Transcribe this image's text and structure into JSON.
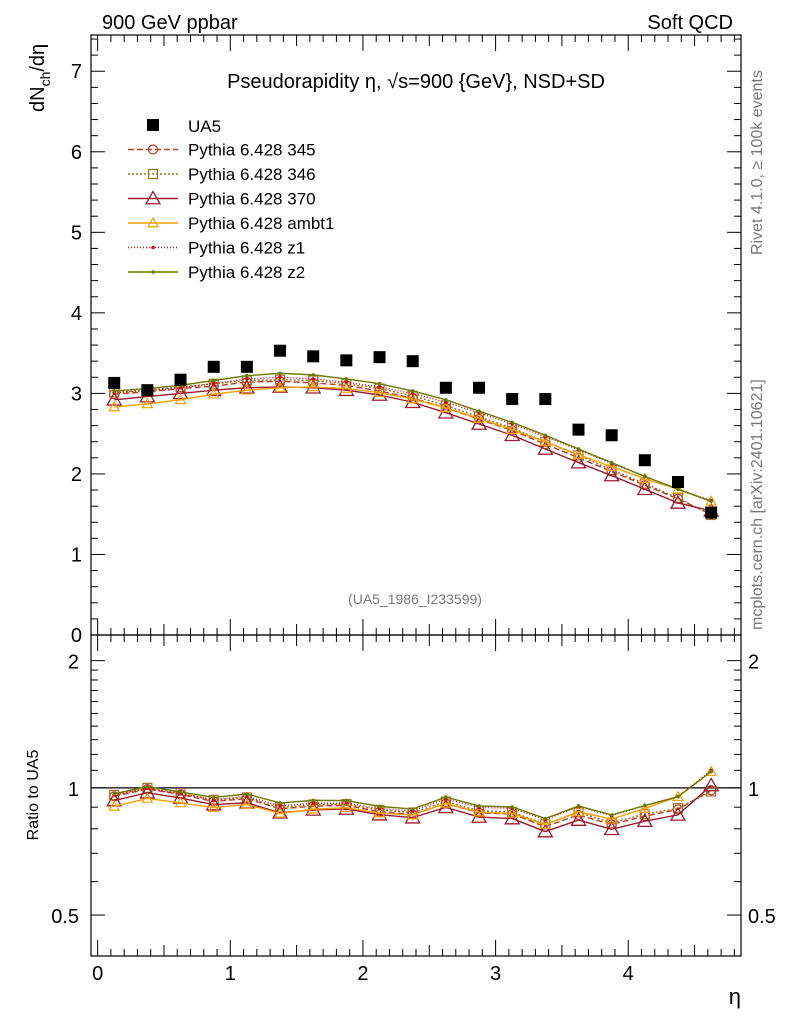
{
  "header": {
    "left": "900 GeV ppbar",
    "right": "Soft QCD"
  },
  "side_labels": {
    "rivet": "Rivet 4.1.0, ≥ 100k events",
    "mcplots": "mcplots.cern.ch [arXiv:2401.10621]"
  },
  "chart_data": {
    "type": "line",
    "title": "Pseudorapidity η, √s=900 {GeV}, NSD+SD",
    "analysis_tag": "(UA5_1986_I233599)",
    "xlabel": "η",
    "ylabel": "dN_ch/dη",
    "ylabel_parts": {
      "main": "dN",
      "sub": "ch",
      "tail": "/dη"
    },
    "ratio_ylabel": "Ratio to UA5",
    "xlim": [
      -0.05,
      4.85
    ],
    "ylim": [
      0,
      7.45
    ],
    "ratio_ylim": [
      0.4,
      2.3
    ],
    "ratio_scale": "log",
    "x_ticks": [
      0,
      1,
      2,
      3,
      4
    ],
    "x_tick_labels": [
      "0",
      "1",
      "2",
      "3",
      "4"
    ],
    "y_ticks": [
      0,
      1,
      2,
      3,
      4,
      5,
      6,
      7
    ],
    "y_tick_labels": [
      "0",
      "1",
      "2",
      "3",
      "4",
      "5",
      "6",
      "7"
    ],
    "ratio_ticks": [
      0.5,
      1,
      2
    ],
    "ratio_tick_labels": [
      "0.5",
      "1",
      "2"
    ],
    "x": [
      0.125,
      0.375,
      0.625,
      0.875,
      1.125,
      1.375,
      1.625,
      1.875,
      2.125,
      2.375,
      2.625,
      2.875,
      3.125,
      3.375,
      3.625,
      3.875,
      4.125,
      4.375,
      4.625
    ],
    "data": {
      "name": "UA5",
      "values": [
        3.13,
        3.04,
        3.17,
        3.33,
        3.33,
        3.53,
        3.46,
        3.41,
        3.45,
        3.4,
        3.07,
        3.07,
        2.93,
        2.93,
        2.55,
        2.48,
        2.17,
        1.9,
        1.52
      ]
    },
    "series": [
      {
        "name": "Pythia 6.428 345",
        "color": "#c0392b",
        "dash": "6,3",
        "marker": "circle-open",
        "values": [
          2.99,
          3.02,
          3.06,
          3.09,
          3.14,
          3.15,
          3.13,
          3.1,
          3.03,
          2.94,
          2.82,
          2.68,
          2.54,
          2.37,
          2.2,
          2.03,
          1.86,
          1.69,
          1.5
        ],
        "ratio": [
          0.955,
          0.993,
          0.965,
          0.928,
          0.943,
          0.892,
          0.905,
          0.909,
          0.878,
          0.865,
          0.918,
          0.873,
          0.867,
          0.809,
          0.863,
          0.819,
          0.857,
          0.889,
          0.987
        ]
      },
      {
        "name": "Pythia 6.428 346",
        "color": "#a07020",
        "dash": "2,2",
        "marker": "square-open",
        "values": [
          3.01,
          3.04,
          3.08,
          3.12,
          3.16,
          3.17,
          3.16,
          3.12,
          3.06,
          2.97,
          2.85,
          2.71,
          2.57,
          2.4,
          2.23,
          2.05,
          1.88,
          1.7,
          1.49
        ],
        "ratio": [
          0.962,
          1.0,
          0.972,
          0.937,
          0.949,
          0.898,
          0.913,
          0.915,
          0.887,
          0.874,
          0.928,
          0.883,
          0.877,
          0.819,
          0.875,
          0.827,
          0.866,
          0.895,
          0.98
        ]
      },
      {
        "name": "Pythia 6.428 370",
        "color": "#9b1b30",
        "dash": "",
        "marker": "triangle-open-big",
        "values": [
          2.92,
          2.96,
          3.0,
          3.04,
          3.07,
          3.08,
          3.07,
          3.04,
          2.98,
          2.89,
          2.76,
          2.62,
          2.48,
          2.31,
          2.14,
          1.98,
          1.81,
          1.64,
          1.54
        ],
        "ratio": [
          0.933,
          0.974,
          0.946,
          0.913,
          0.922,
          0.873,
          0.887,
          0.891,
          0.864,
          0.85,
          0.899,
          0.853,
          0.846,
          0.788,
          0.839,
          0.798,
          0.834,
          0.863,
          1.013
        ]
      },
      {
        "name": "Pythia 6.428 ambt1",
        "color": "#f0a000",
        "dash": "",
        "marker": "triangle-open",
        "values": [
          2.83,
          2.87,
          2.92,
          2.99,
          3.04,
          3.07,
          3.08,
          3.06,
          3.01,
          2.93,
          2.82,
          2.69,
          2.55,
          2.4,
          2.24,
          2.09,
          1.94,
          1.81,
          1.66
        ],
        "ratio": [
          0.904,
          0.944,
          0.921,
          0.898,
          0.913,
          0.87,
          0.89,
          0.897,
          0.872,
          0.862,
          0.919,
          0.876,
          0.87,
          0.819,
          0.878,
          0.843,
          0.894,
          0.953,
          1.092
        ]
      },
      {
        "name": "Pythia 6.428 z1",
        "color": "#cc1010",
        "dash": "1,2",
        "marker": "dot",
        "values": [
          3.01,
          3.03,
          3.07,
          3.12,
          3.18,
          3.2,
          3.18,
          3.14,
          3.08,
          3.0,
          2.89,
          2.76,
          2.62,
          2.46,
          2.3,
          2.13,
          1.97,
          1.81,
          1.67
        ],
        "ratio": [
          0.962,
          0.997,
          0.968,
          0.937,
          0.955,
          0.907,
          0.919,
          0.921,
          0.893,
          0.882,
          0.941,
          0.899,
          0.894,
          0.84,
          0.902,
          0.859,
          0.908,
          0.953,
          1.099
        ]
      },
      {
        "name": "Pythia 6.428 z2",
        "color": "#6b7a00",
        "dash": "",
        "marker": "dot",
        "values": [
          3.03,
          3.06,
          3.1,
          3.16,
          3.22,
          3.25,
          3.23,
          3.18,
          3.12,
          3.03,
          2.92,
          2.78,
          2.64,
          2.48,
          2.31,
          2.14,
          1.97,
          1.81,
          1.66
        ],
        "ratio": [
          0.968,
          1.007,
          0.978,
          0.949,
          0.967,
          0.921,
          0.934,
          0.933,
          0.904,
          0.891,
          0.951,
          0.906,
          0.901,
          0.846,
          0.906,
          0.863,
          0.908,
          0.953,
          1.092
        ]
      }
    ]
  }
}
